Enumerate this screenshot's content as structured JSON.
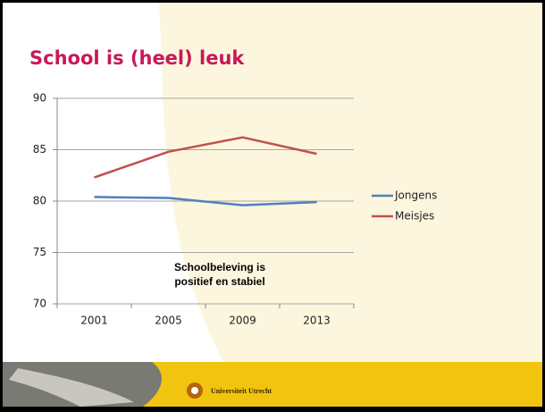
{
  "chart_data": {
    "type": "line",
    "title": "School is (heel) leuk",
    "categories": [
      "2001",
      "2005",
      "2009",
      "2013"
    ],
    "series": [
      {
        "name": "Jongens",
        "color": "#4f81bd",
        "values": [
          80.4,
          80.3,
          79.6,
          79.9
        ]
      },
      {
        "name": "Meisjes",
        "color": "#c0504d",
        "values": [
          82.3,
          84.8,
          86.2,
          84.6
        ]
      }
    ],
    "ylim": [
      70,
      90
    ],
    "yticks": [
      70,
      75,
      80,
      85,
      90
    ],
    "grid": true,
    "legend": "right",
    "annotation": [
      "Schoolbeleving is",
      "positief en stabiel"
    ]
  },
  "footer": "Universiteit Utrecht"
}
